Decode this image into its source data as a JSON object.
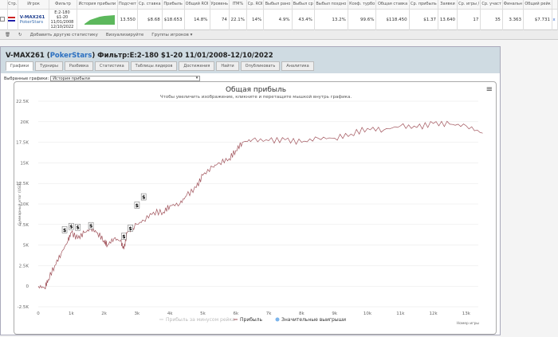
{
  "grid": {
    "headers": [
      "",
      "Стр.",
      "Игрок",
      "Фильтр",
      "История прибыли",
      "Подсчет",
      "Ср. ставка",
      "Прибыль",
      "Общий ROI",
      "Уровень",
      "ITM%",
      "Ср. ROI",
      "Выбыл рано",
      "Выбыл ср",
      "Выбыл поздно",
      "Коэф. турбо",
      "Общая ставка",
      "Ср. прибыль",
      "Заявки",
      "Ср. игры /",
      "Ср. участ",
      "Финальн",
      "Общий рейк",
      ""
    ],
    "row": {
      "player": "V-MAX261",
      "site": "PokerStars",
      "filter": [
        "E:2-180",
        "$1-20",
        "11/01/2008",
        "12/10/2022"
      ],
      "values": [
        "13.550",
        "$8.68",
        "$18.653",
        "14.8%",
        "74",
        "22.1%",
        "14%",
        "4.9%",
        "43.4%",
        "13.2%",
        "99.6%",
        "$118.450",
        "$1.37",
        "13.640",
        "17",
        "35",
        "3.363",
        "$7.731"
      ],
      "close": "x"
    }
  },
  "toolbar": {
    "add_stat": "Добавить другую статистику",
    "visualize": "Визуализируйте",
    "groups": "Группы игроков ▾"
  },
  "panel": {
    "player": "V-MAX261",
    "site": "PokerStars",
    "filter": "Фильтр:E:2-180 $1-20 11/01/2008-12/10/2022",
    "tabs": [
      "Графики",
      "Турниры",
      "Разбивка",
      "Статистика",
      "Таблицы лидеров",
      "Достижения",
      "Найти",
      "Опубликовать",
      "Аналитика"
    ],
    "selected_label": "Выбранные графики:",
    "selected_value": "История прибыли"
  },
  "chart_data": {
    "type": "line",
    "title": "Общая прибыль",
    "subtitle": "Чтобы увеличить изображение, кликните и перетащите мышкой внутрь графика.",
    "ylabel": "Суммарный итог (USD)",
    "xlabel": "Номер игры",
    "ylim": [
      -2500,
      22500
    ],
    "xlim": [
      0,
      13500
    ],
    "yticks": [
      "-2.5K",
      "0",
      "2.5K",
      "5K",
      "7.5K",
      "10K",
      "12.5K",
      "15K",
      "17.5K",
      "20K",
      "22.5K"
    ],
    "xticks": [
      "0",
      "1k",
      "2k",
      "3k",
      "4k",
      "5k",
      "6k",
      "7k",
      "8k",
      "9k",
      "10k",
      "11k",
      "12k",
      "13k"
    ],
    "legend": [
      "Прибыль за минусом рейка",
      "Прибыль",
      "Значительные выигрыши"
    ],
    "legend_position": "bottom",
    "profit_color": "#a0525a",
    "series": [
      {
        "name": "Прибыль",
        "x": [
          0,
          200,
          300,
          500,
          700,
          900,
          1000,
          1200,
          1400,
          1600,
          1800,
          2000,
          2100,
          2300,
          2500,
          2600,
          2700,
          3000,
          3200,
          3500,
          3800,
          4000,
          4300,
          4500,
          4800,
          5000,
          5300,
          5500,
          5800,
          6000,
          6200,
          6500,
          7000,
          7500,
          8000,
          8500,
          9000,
          9500,
          10000,
          10500,
          11000,
          11500,
          12000,
          12500,
          13000,
          13500
        ],
        "y": [
          0,
          -200,
          800,
          2500,
          4000,
          5500,
          6500,
          5800,
          6500,
          7000,
          6500,
          5500,
          5000,
          5800,
          5500,
          4500,
          6500,
          7500,
          8000,
          9000,
          9000,
          9800,
          10000,
          11000,
          12000,
          13500,
          14500,
          15000,
          15500,
          16500,
          17500,
          17800,
          17700,
          17800,
          17500,
          18000,
          18000,
          18500,
          19200,
          19000,
          19500,
          19300,
          19800,
          19700,
          19500,
          18600
        ]
      }
    ],
    "big_wins": {
      "x": [
        800,
        1000,
        1200,
        1600,
        2600,
        2800,
        3000,
        3200
      ],
      "y": [
        5800,
        6200,
        6100,
        6300,
        5000,
        6000,
        8800,
        9800
      ],
      "label": "$"
    }
  }
}
